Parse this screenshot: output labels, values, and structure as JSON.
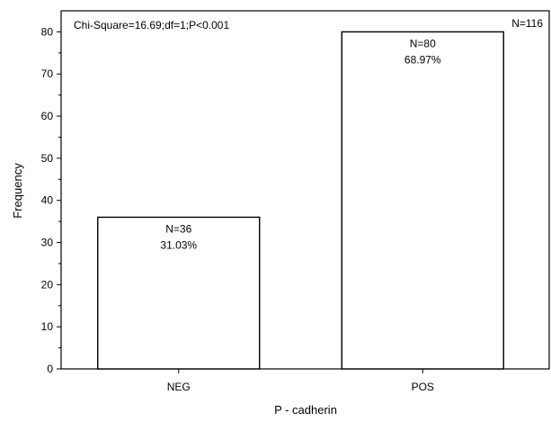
{
  "chart_data": {
    "type": "bar",
    "categories": [
      "NEG",
      "POS"
    ],
    "values": [
      36,
      80
    ],
    "bar_labels": [
      {
        "count": "N=36",
        "percent": "31.03%"
      },
      {
        "count": "N=80",
        "percent": "68.97%"
      }
    ],
    "xlabel": "P - cadherin",
    "ylabel": "Frequency",
    "ylim": [
      0,
      85
    ],
    "yticks": [
      0,
      10,
      20,
      30,
      40,
      50,
      60,
      70,
      80
    ],
    "grid": false,
    "annotations": {
      "stats": "Chi-Square=16.69;df=1;P<0.001",
      "total": "N=116"
    }
  }
}
